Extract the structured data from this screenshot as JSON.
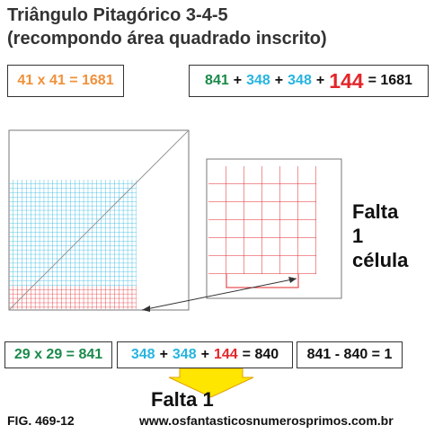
{
  "title": [
    "Triângulo Pitagórico 3-4-5",
    "(recompondo área quadrado inscrito)"
  ],
  "top_left": "41 x 41 = 1681",
  "top_right": [
    "841",
    "+",
    "348",
    "+",
    "348",
    "+",
    "144",
    "= 1681"
  ],
  "note": [
    "Falta",
    "1",
    "célula"
  ],
  "bottom_left": "29 x 29 = 841",
  "bottom_middle": [
    "348",
    "+",
    "348",
    "+",
    "144",
    "= 840"
  ],
  "bottom_right": "841 - 840 = 1",
  "result": "Falta 1",
  "figure": "FIG. 469-12",
  "website": "www.osfantasticosnumerosprimos.com.br"
}
